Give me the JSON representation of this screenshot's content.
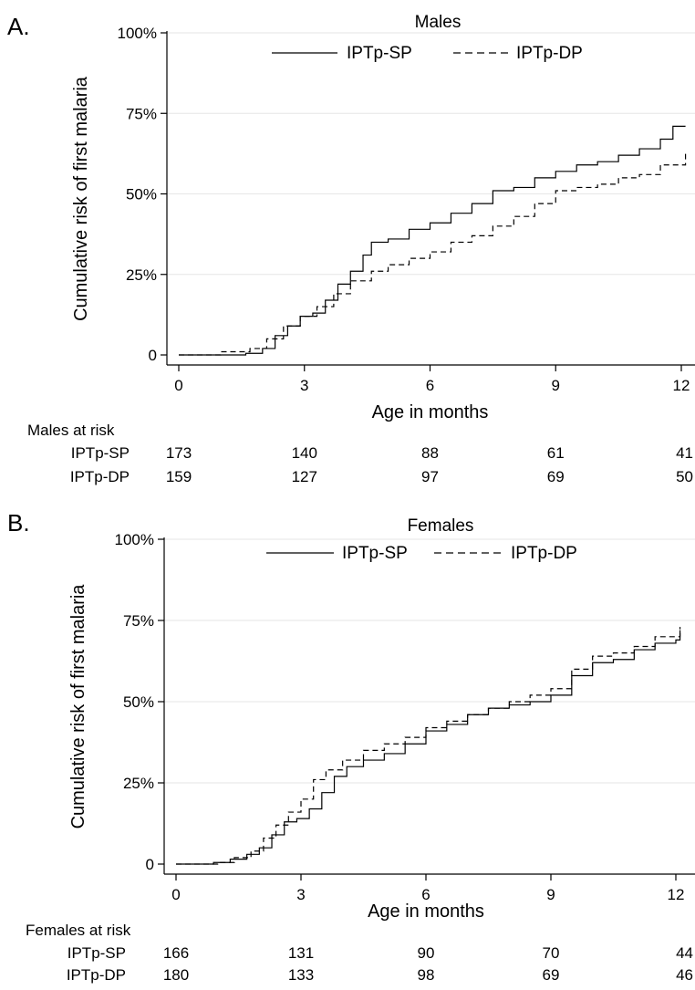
{
  "chart_data": [
    {
      "type": "line",
      "panel_label": "A.",
      "title": "Males",
      "xlabel": "Age in months",
      "ylabel": "Cumulative risk of first malaria",
      "xlim": [
        0,
        12.1
      ],
      "ylim": [
        0,
        1
      ],
      "x_ticks": [
        0,
        3,
        6,
        9,
        12
      ],
      "y_ticks": [
        {
          "value": 0,
          "label": "0"
        },
        {
          "value": 0.25,
          "label": "25%"
        },
        {
          "value": 0.5,
          "label": "50%"
        },
        {
          "value": 0.75,
          "label": "75%"
        },
        {
          "value": 1.0,
          "label": "100%"
        }
      ],
      "grid": true,
      "legend_position": "top",
      "series": [
        {
          "name": "IPTp-SP",
          "style": "solid",
          "x": [
            0,
            1.6,
            2.0,
            2.3,
            2.6,
            2.9,
            3.2,
            3.5,
            3.8,
            4.1,
            4.4,
            4.6,
            5.0,
            5.5,
            6.0,
            6.5,
            7.0,
            7.5,
            8.0,
            8.5,
            9.0,
            9.5,
            10.0,
            10.5,
            11.0,
            11.5,
            11.8,
            12.1
          ],
          "y": [
            0,
            0.005,
            0.02,
            0.06,
            0.09,
            0.12,
            0.13,
            0.17,
            0.22,
            0.26,
            0.31,
            0.35,
            0.36,
            0.39,
            0.41,
            0.44,
            0.47,
            0.51,
            0.52,
            0.55,
            0.57,
            0.59,
            0.6,
            0.62,
            0.64,
            0.67,
            0.71,
            0.71
          ]
        },
        {
          "name": "IPTp-DP",
          "style": "dashed",
          "x": [
            0,
            1.0,
            1.7,
            2.1,
            2.5,
            2.9,
            3.3,
            3.7,
            4.1,
            4.6,
            5.0,
            5.5,
            6.0,
            6.5,
            7.0,
            7.5,
            8.0,
            8.5,
            9.0,
            9.5,
            10.0,
            10.5,
            11.0,
            11.5,
            12.1
          ],
          "y": [
            0,
            0.01,
            0.02,
            0.05,
            0.09,
            0.12,
            0.15,
            0.19,
            0.23,
            0.26,
            0.28,
            0.3,
            0.32,
            0.35,
            0.37,
            0.4,
            0.43,
            0.47,
            0.51,
            0.52,
            0.53,
            0.55,
            0.56,
            0.59,
            0.63
          ]
        }
      ],
      "risk_table": {
        "title": "Males at risk",
        "x": [
          0,
          3,
          6,
          9,
          12
        ],
        "rows": [
          {
            "label": "IPTp-SP",
            "values": [
              "173",
              "140",
              "88",
              "61",
              "41"
            ]
          },
          {
            "label": "IPTp-DP",
            "values": [
              "159",
              "127",
              "97",
              "69",
              "50"
            ]
          }
        ]
      }
    },
    {
      "type": "line",
      "panel_label": "B.",
      "title": "Females",
      "xlabel": "Age in months",
      "ylabel": "Cumulative risk of first malaria",
      "xlim": [
        0,
        12.1
      ],
      "ylim": [
        0,
        1
      ],
      "x_ticks": [
        0,
        3,
        6,
        9,
        12
      ],
      "y_ticks": [
        {
          "value": 0,
          "label": "0"
        },
        {
          "value": 0.25,
          "label": "25%"
        },
        {
          "value": 0.5,
          "label": "50%"
        },
        {
          "value": 0.75,
          "label": "75%"
        },
        {
          "value": 1.0,
          "label": "100%"
        }
      ],
      "grid": true,
      "legend_position": "top",
      "series": [
        {
          "name": "IPTp-SP",
          "style": "solid",
          "x": [
            0,
            0.9,
            1.3,
            1.7,
            2.0,
            2.3,
            2.6,
            2.9,
            3.2,
            3.5,
            3.8,
            4.1,
            4.5,
            5.0,
            5.5,
            6.0,
            6.5,
            7.0,
            7.5,
            8.0,
            8.5,
            9.0,
            9.5,
            10.0,
            10.5,
            11.0,
            11.5,
            12.0,
            12.1
          ],
          "y": [
            0,
            0.005,
            0.015,
            0.03,
            0.05,
            0.09,
            0.13,
            0.14,
            0.17,
            0.22,
            0.27,
            0.3,
            0.32,
            0.34,
            0.37,
            0.41,
            0.43,
            0.46,
            0.48,
            0.49,
            0.5,
            0.52,
            0.58,
            0.62,
            0.63,
            0.66,
            0.68,
            0.69,
            0.72
          ]
        },
        {
          "name": "IPTp-DP",
          "style": "dashed",
          "x": [
            0,
            1.0,
            1.4,
            1.8,
            2.1,
            2.4,
            2.7,
            3.0,
            3.3,
            3.6,
            4.0,
            4.5,
            5.0,
            5.5,
            6.0,
            6.5,
            7.0,
            7.5,
            8.0,
            8.5,
            9.0,
            9.5,
            10.0,
            10.5,
            11.0,
            11.5,
            12.1
          ],
          "y": [
            0,
            0.005,
            0.02,
            0.04,
            0.08,
            0.12,
            0.16,
            0.2,
            0.26,
            0.29,
            0.32,
            0.35,
            0.37,
            0.39,
            0.42,
            0.44,
            0.46,
            0.48,
            0.5,
            0.52,
            0.54,
            0.6,
            0.64,
            0.65,
            0.67,
            0.7,
            0.73
          ]
        }
      ],
      "risk_table": {
        "title": "Females at risk",
        "x": [
          0,
          3,
          6,
          9,
          12
        ],
        "rows": [
          {
            "label": "IPTp-SP",
            "values": [
              "166",
              "131",
              "90",
              "70",
              "44"
            ]
          },
          {
            "label": "IPTp-DP",
            "values": [
              "180",
              "133",
              "98",
              "69",
              "46"
            ]
          }
        ]
      }
    }
  ]
}
